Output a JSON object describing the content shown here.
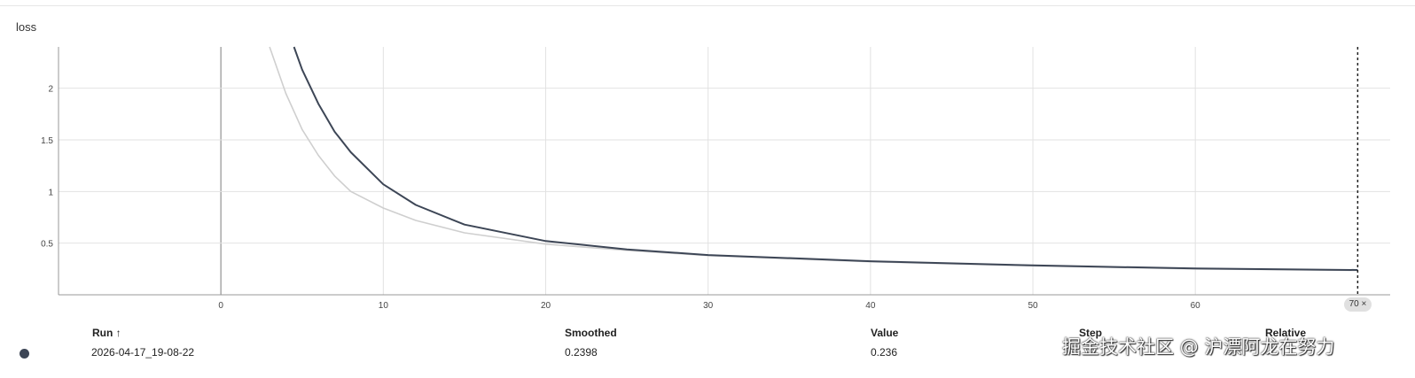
{
  "card": {
    "title": "loss"
  },
  "chart_data": {
    "type": "line",
    "xlim": [
      -10,
      72
    ],
    "ylim": [
      0,
      2.4
    ],
    "x_ticks": [
      0,
      10,
      20,
      30,
      40,
      50,
      60
    ],
    "y_ticks": [
      0.5,
      1,
      1.5,
      2
    ],
    "grid": true,
    "series": [
      {
        "role": "raw",
        "color": "#cfcfcf",
        "x": [
          3,
          4,
          5,
          6,
          7,
          8,
          10,
          12,
          15,
          20,
          25,
          30,
          40,
          50,
          60,
          70
        ],
        "y": [
          2.4,
          1.95,
          1.6,
          1.35,
          1.15,
          1.0,
          0.84,
          0.72,
          0.6,
          0.49,
          0.43,
          0.38,
          0.32,
          0.28,
          0.25,
          0.236
        ]
      },
      {
        "role": "smoothed",
        "color": "#3d4656",
        "x": [
          4.5,
          5,
          6,
          7,
          8,
          10,
          12,
          15,
          20,
          25,
          30,
          40,
          50,
          60,
          70
        ],
        "y": [
          2.4,
          2.18,
          1.85,
          1.58,
          1.38,
          1.07,
          0.87,
          0.68,
          0.52,
          0.44,
          0.385,
          0.325,
          0.285,
          0.255,
          0.2398
        ]
      }
    ],
    "hover_step": 70
  },
  "hover": {
    "label": "70 ×"
  },
  "table": {
    "headers": {
      "run": "Run ↑",
      "smoothed": "Smoothed",
      "value": "Value",
      "step": "Step",
      "relative": "Relative"
    },
    "row": {
      "run": "2026-04-17_19-08-22",
      "smoothed": "0.2398",
      "value": "0.236",
      "color": "#3d4656"
    }
  },
  "watermark": "掘金技术社区 @ 沪漂阿龙在努力"
}
